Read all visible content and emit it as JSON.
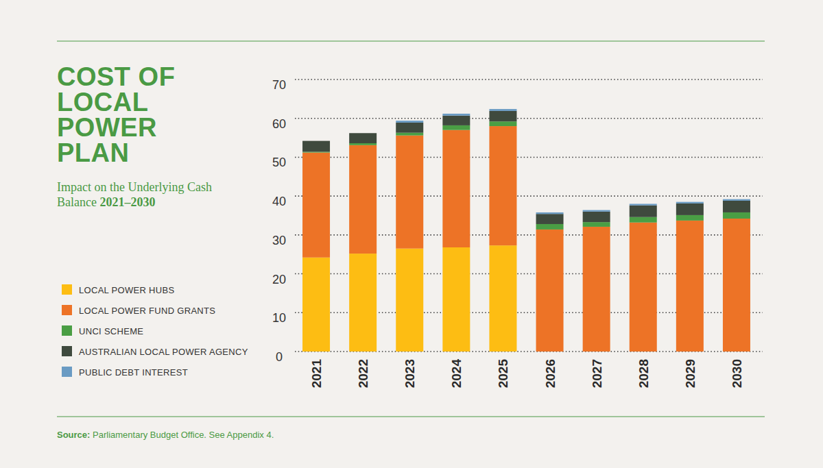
{
  "chart_data": {
    "type": "bar",
    "stacked": true,
    "title": "COST OF LOCAL POWER PLAN",
    "subtitle": "Impact on the Underlying Cash Balance 2021–2030",
    "source": "Source: Parliamentary Budget Office. See Appendix 4.",
    "categories": [
      "2021",
      "2022",
      "2023",
      "2024",
      "2025",
      "2026",
      "2027",
      "2028",
      "2029",
      "2030"
    ],
    "series": [
      {
        "name": "LOCAL POWER HUBS",
        "color": "#fdbd13",
        "values": [
          24.2,
          25.2,
          26.5,
          26.8,
          27.3,
          0,
          0,
          0,
          0,
          0
        ]
      },
      {
        "name": "LOCAL POWER FUND GRANTS",
        "color": "#ed7326",
        "values": [
          27.0,
          27.9,
          29.1,
          30.2,
          30.7,
          31.4,
          32.1,
          33.2,
          33.7,
          34.2
        ]
      },
      {
        "name": "UNCI SCHEME",
        "color": "#4a9e44",
        "values": [
          0.2,
          0.5,
          0.7,
          1.2,
          1.2,
          1.4,
          1.2,
          1.4,
          1.4,
          1.6
        ]
      },
      {
        "name": "AUSTRALIAN LOCAL POWER AGENCY",
        "color": "#3f4a3e",
        "values": [
          2.8,
          2.6,
          2.6,
          2.5,
          2.7,
          2.6,
          2.7,
          3.0,
          3.0,
          3.0
        ]
      },
      {
        "name": "PUBLIC DEBT INTEREST",
        "color": "#6a9bc3",
        "values": [
          0,
          0,
          0.5,
          0.5,
          0.5,
          0.4,
          0.4,
          0.4,
          0.4,
          0.4
        ]
      }
    ],
    "ylim": [
      0,
      70
    ],
    "yticks": [
      0,
      10,
      20,
      30,
      40,
      50,
      60,
      70
    ],
    "grid": true,
    "legend": "left"
  }
}
